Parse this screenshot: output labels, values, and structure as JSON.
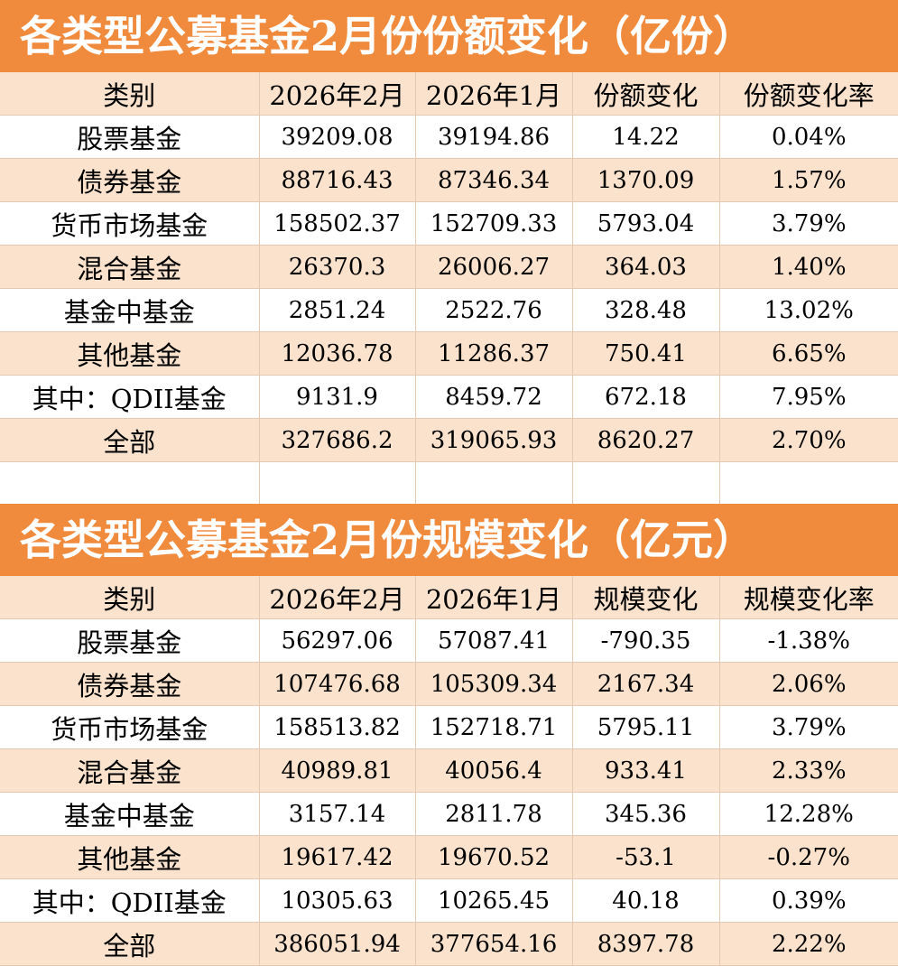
{
  "tables": [
    {
      "title": "各类型公募基金2月份份额变化（亿份）",
      "headers": [
        "类别",
        "2026年2月",
        "2026年1月",
        "份额变化",
        "份额变化率"
      ],
      "rows": [
        [
          "股票基金",
          "39209.08",
          "39194.86",
          "14.22",
          "0.04%"
        ],
        [
          "债券基金",
          "88716.43",
          "87346.34",
          "1370.09",
          "1.57%"
        ],
        [
          "货币市场基金",
          "158502.37",
          "152709.33",
          "5793.04",
          "3.79%"
        ],
        [
          "混合基金",
          "26370.3",
          "26006.27",
          "364.03",
          "1.40%"
        ],
        [
          "基金中基金",
          "2851.24",
          "2522.76",
          "328.48",
          "13.02%"
        ],
        [
          "其他基金",
          "12036.78",
          "11286.37",
          "750.41",
          "6.65%"
        ],
        [
          "其中：QDII基金",
          "9131.9",
          "8459.72",
          "672.18",
          "7.95%"
        ],
        [
          "全部",
          "327686.2",
          "319065.93",
          "8620.27",
          "2.70%"
        ]
      ]
    },
    {
      "title": "各类型公募基金2月份规模变化（亿元）",
      "headers": [
        "类别",
        "2026年2月",
        "2026年1月",
        "规模变化",
        "规模变化率"
      ],
      "rows": [
        [
          "股票基金",
          "56297.06",
          "57087.41",
          "-790.35",
          "-1.38%"
        ],
        [
          "债券基金",
          "107476.68",
          "105309.34",
          "2167.34",
          "2.06%"
        ],
        [
          "货币市场基金",
          "158513.82",
          "152718.71",
          "5795.11",
          "3.79%"
        ],
        [
          "混合基金",
          "40989.81",
          "40056.4",
          "933.41",
          "2.33%"
        ],
        [
          "基金中基金",
          "3157.14",
          "2811.78",
          "345.36",
          "12.28%"
        ],
        [
          "其他基金",
          "19617.42",
          "19670.52",
          "-53.1",
          "-0.27%"
        ],
        [
          "其中：QDII基金",
          "10305.63",
          "10265.45",
          "40.18",
          "0.39%"
        ],
        [
          "全部",
          "386051.94",
          "377654.16",
          "8397.78",
          "2.22%"
        ]
      ]
    }
  ],
  "colors": {
    "title_bg": "#f08a3c",
    "alt_row_bg": "#fbe2cc"
  }
}
